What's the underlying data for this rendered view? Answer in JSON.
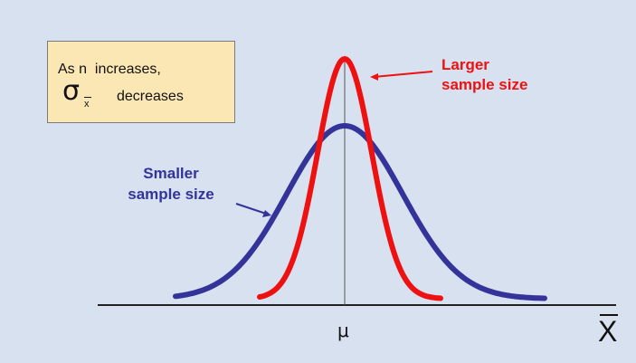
{
  "callout": {
    "line1": "As n  increases,",
    "sigma_symbol": "σ",
    "sigma_subscript": "x",
    "line2": "decreases"
  },
  "labels": {
    "larger_line1": "Larger",
    "larger_line2": "sample size",
    "smaller_line1": "Smaller",
    "smaller_line2": "sample size"
  },
  "axis": {
    "mean_label": "μ",
    "x_label": "X"
  },
  "colors": {
    "background": "#d8e1f0",
    "larger_curve": "#ee1111",
    "smaller_curve": "#33339a",
    "callout_fill": "#fbe7b3"
  }
}
